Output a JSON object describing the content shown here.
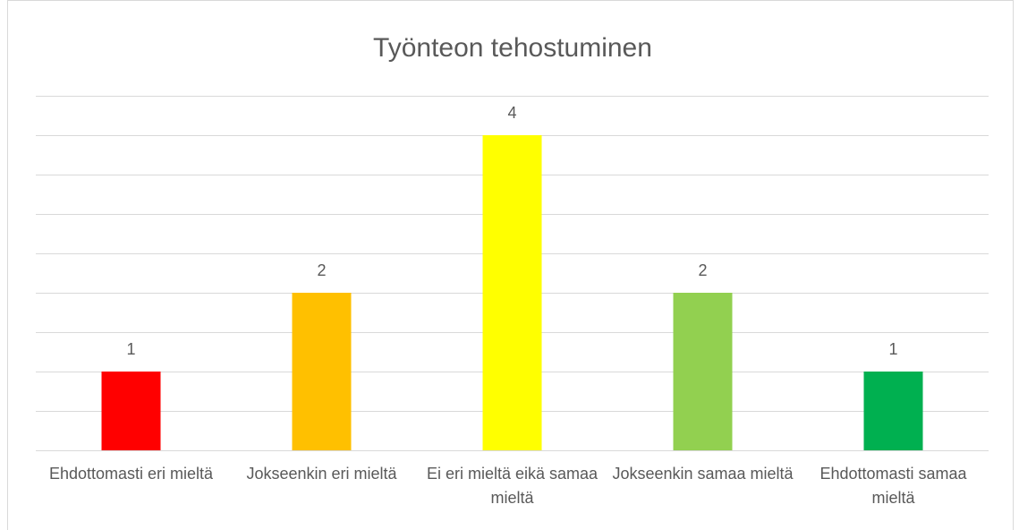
{
  "chart_data": {
    "type": "bar",
    "title": "Työnteon tehostuminen",
    "categories": [
      "Ehdottomasti eri mieltä",
      "Jokseenkin eri mieltä",
      "Ei eri mieltä eikä samaa mieltä",
      "Jokseenkin samaa mieltä",
      "Ehdottomasti samaa mieltä"
    ],
    "values": [
      1,
      2,
      4,
      2,
      1
    ],
    "colors": [
      "#ff0000",
      "#ffc000",
      "#ffff00",
      "#92d050",
      "#00b050"
    ],
    "ylim": [
      0,
      4.5
    ],
    "yticks": [
      0,
      0.5,
      1,
      1.5,
      2,
      2.5,
      3,
      3.5,
      4,
      4.5
    ],
    "grid": true
  }
}
